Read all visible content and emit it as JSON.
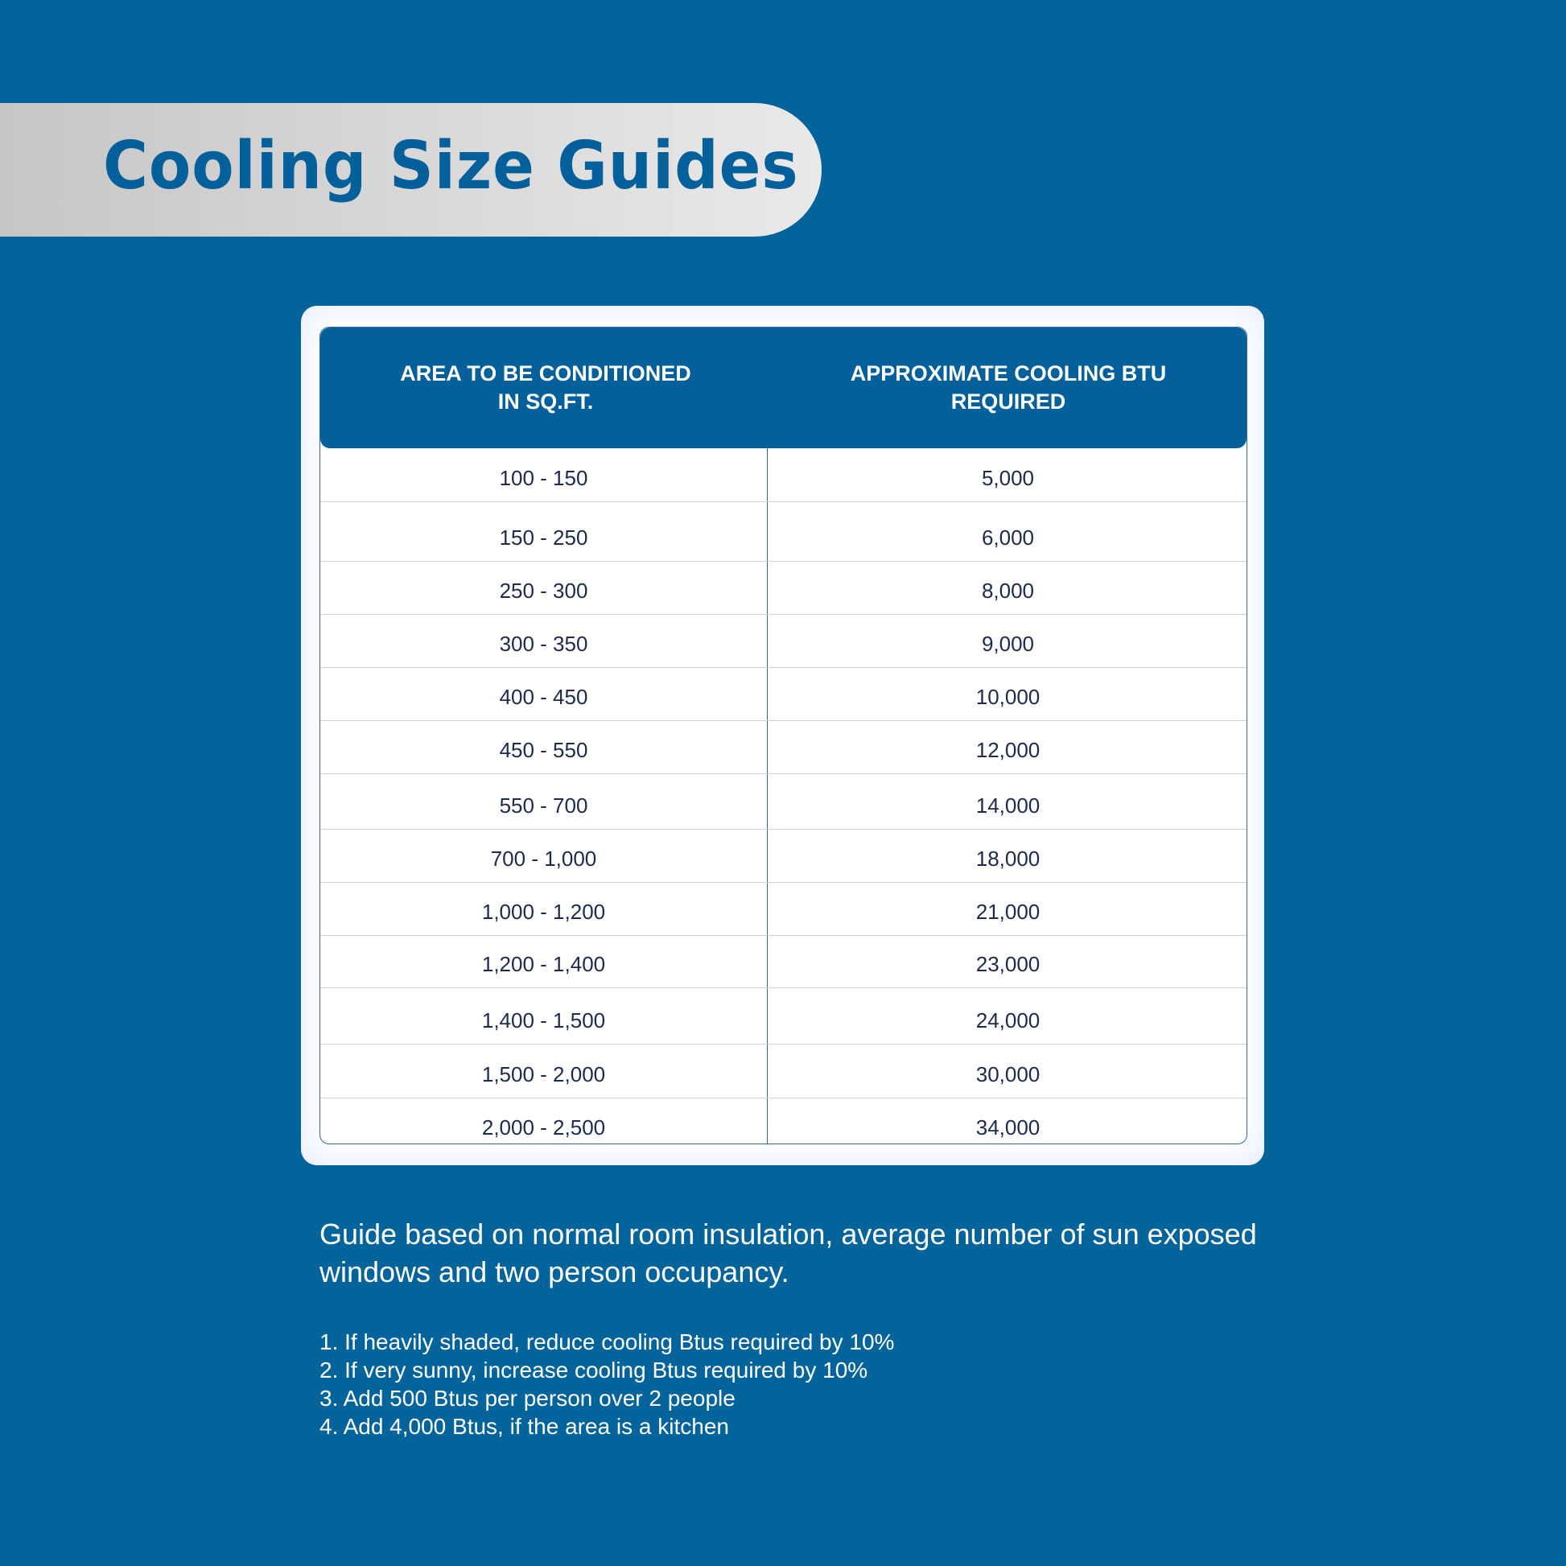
{
  "title": "Cooling Size Guides",
  "table": {
    "headers": [
      "AREA TO BE CONDITIONED\nIN SQ.FT.",
      "APPROXIMATE COOLING BTU\nREQUIRED"
    ],
    "header_lines": [
      [
        "AREA TO BE CONDITIONED",
        "IN SQ.FT."
      ],
      [
        "APPROXIMATE COOLING BTU",
        "REQUIRED"
      ]
    ],
    "rows": [
      [
        "100 - 150",
        "5,000"
      ],
      [
        "150 - 250",
        "6,000"
      ],
      [
        "250 - 300",
        "8,000"
      ],
      [
        "300 - 350",
        "9,000"
      ],
      [
        "400 - 450",
        "10,000"
      ],
      [
        "450 - 550",
        "12,000"
      ],
      [
        "550 - 700",
        "14,000"
      ],
      [
        "700 - 1,000",
        "18,000"
      ],
      [
        "1,000 - 1,200",
        "21,000"
      ],
      [
        "1,200 - 1,400",
        "23,000"
      ],
      [
        "1,400 - 1,500",
        "24,000"
      ],
      [
        "1,500 - 2,000",
        "30,000"
      ],
      [
        "2,000 - 2,500",
        "34,000"
      ]
    ]
  },
  "note": "Guide based on normal room insulation, average number of sun exposed windows and two person occupancy.",
  "adjustments": [
    "1.  If heavily shaded, reduce cooling Btus required by 10%",
    "2. If very sunny, increase cooling Btus required by 10%",
    "3. Add 500 Btus per person over 2 people",
    "4. Add 4,000 Btus, if the area is a kitchen"
  ],
  "colors": {
    "background": "#03639b",
    "header": "#04609a",
    "title": "#04609a",
    "cell_text": "#1c2a4b"
  }
}
